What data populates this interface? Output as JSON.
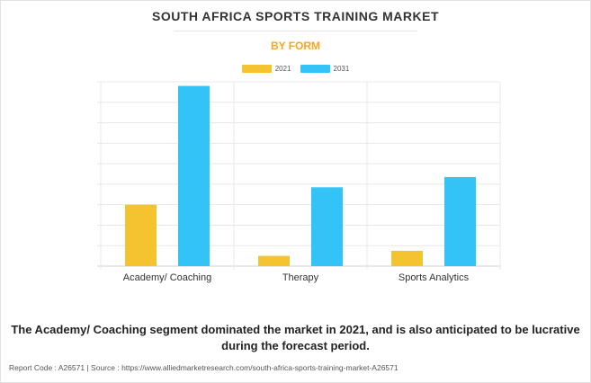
{
  "header": {
    "title": "SOUTH AFRICA SPORTS TRAINING MARKET",
    "subtitle": "BY FORM"
  },
  "colors": {
    "series_2021": "#f4c430",
    "series_2031": "#33c3f7",
    "subtitle": "#f5a623"
  },
  "chart_data": {
    "type": "bar",
    "title": "SOUTH AFRICA SPORTS TRAINING MARKET",
    "subtitle": "BY FORM",
    "categories": [
      "Academy/ Coaching",
      "Therapy",
      "Sports Analytics"
    ],
    "series": [
      {
        "name": "2021",
        "values": [
          30,
          5,
          7.5
        ]
      },
      {
        "name": "2031",
        "values": [
          88,
          38.5,
          43.5
        ]
      }
    ],
    "ylim": [
      0,
      90
    ],
    "yticks": [
      0,
      10,
      20,
      30,
      40,
      50,
      60,
      70,
      80,
      90
    ],
    "ytick_labels_shown": false,
    "grid": true,
    "legend": "top-center",
    "xlabel": "",
    "ylabel": ""
  },
  "caption": "The Academy/ Coaching segment dominated the market in 2021, and is also anticipated to be lucrative during the forecast period.",
  "footer": "Report Code : A26571  |  Source : https://www.alliedmarketresearch.com/south-africa-sports-training-market-A26571"
}
